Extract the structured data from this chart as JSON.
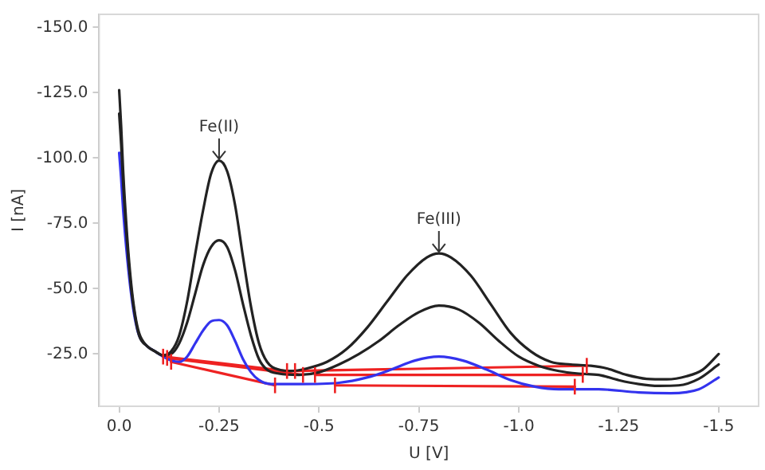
{
  "chart_data": {
    "type": "line",
    "xlabel": "U [V]",
    "ylabel": "I [nA]",
    "xlim": [
      0.05,
      -1.6
    ],
    "ylim": [
      -5,
      -155
    ],
    "xticks": [
      {
        "value": 0,
        "label": "0.0"
      },
      {
        "value": -0.25,
        "label": "-0.25"
      },
      {
        "value": -0.5,
        "label": "-0.5"
      },
      {
        "value": -0.75,
        "label": "-0.75"
      },
      {
        "value": -1,
        "label": "-1.0"
      },
      {
        "value": -1.25,
        "label": "-1.25"
      },
      {
        "value": -1.5,
        "label": "-1.5"
      }
    ],
    "yticks": [
      {
        "value": -150,
        "label": "-150.0"
      },
      {
        "value": -125,
        "label": "-125.0"
      },
      {
        "value": -100,
        "label": "-100.0"
      },
      {
        "value": -75,
        "label": "-75.0"
      },
      {
        "value": -50,
        "label": "-50.0"
      },
      {
        "value": -25,
        "label": "-25.0"
      }
    ],
    "grid": false,
    "legend": false,
    "marker": "none",
    "line_style": "solid",
    "series": [
      {
        "color": "#222222",
        "x": [
          0,
          -0.005,
          -0.01,
          -0.02,
          -0.03,
          -0.04,
          -0.05,
          -0.07,
          -0.09,
          -0.11,
          -0.13,
          -0.15,
          -0.17,
          -0.19,
          -0.21,
          -0.23,
          -0.25,
          -0.27,
          -0.29,
          -0.31,
          -0.33,
          -0.35,
          -0.37,
          -0.4,
          -0.43,
          -0.47,
          -0.52,
          -0.57,
          -0.62,
          -0.67,
          -0.72,
          -0.77,
          -0.8,
          -0.83,
          -0.88,
          -0.93,
          -0.98,
          -1.03,
          -1.08,
          -1.13,
          -1.18,
          -1.22,
          -1.27,
          -1.32,
          -1.37,
          -1.42,
          -1.46,
          -1.5
        ],
        "values": [
          -126,
          -112,
          -95,
          -70,
          -52,
          -40,
          -33,
          -28,
          -26,
          -24.5,
          -26,
          -32,
          -45,
          -63,
          -80,
          -94,
          -99,
          -95,
          -82,
          -62,
          -43,
          -29,
          -22,
          -19,
          -18.5,
          -19.5,
          -22,
          -27,
          -35,
          -45,
          -55,
          -62,
          -63.5,
          -62,
          -55,
          -44,
          -33,
          -26,
          -22,
          -21,
          -20.5,
          -19.5,
          -17,
          -15.5,
          -15.3,
          -16.5,
          -19,
          -25
        ]
      },
      {
        "color": "#222222",
        "x": [
          0,
          -0.005,
          -0.01,
          -0.02,
          -0.03,
          -0.04,
          -0.05,
          -0.07,
          -0.09,
          -0.11,
          -0.13,
          -0.15,
          -0.17,
          -0.19,
          -0.21,
          -0.23,
          -0.25,
          -0.27,
          -0.29,
          -0.31,
          -0.33,
          -0.35,
          -0.37,
          -0.4,
          -0.45,
          -0.5,
          -0.55,
          -0.6,
          -0.65,
          -0.7,
          -0.75,
          -0.8,
          -0.85,
          -0.9,
          -0.95,
          -1,
          -1.05,
          -1.1,
          -1.15,
          -1.2,
          -1.25,
          -1.3,
          -1.35,
          -1.4,
          -1.45,
          -1.5
        ],
        "values": [
          -117,
          -105,
          -90,
          -67,
          -50,
          -39,
          -32,
          -28,
          -26,
          -24.5,
          -25,
          -29,
          -37,
          -48,
          -59,
          -66,
          -68.5,
          -66,
          -57,
          -44,
          -32,
          -23,
          -19,
          -17.5,
          -17,
          -18,
          -21,
          -25,
          -30,
          -36,
          -41,
          -43.5,
          -42,
          -37,
          -30,
          -24,
          -20.5,
          -18.5,
          -17.5,
          -17,
          -15,
          -13.5,
          -12.8,
          -13,
          -15.5,
          -21
        ]
      },
      {
        "color": "#3333ee",
        "x": [
          0,
          -0.005,
          -0.01,
          -0.02,
          -0.03,
          -0.04,
          -0.05,
          -0.07,
          -0.09,
          -0.11,
          -0.13,
          -0.15,
          -0.17,
          -0.19,
          -0.21,
          -0.23,
          -0.25,
          -0.27,
          -0.29,
          -0.31,
          -0.33,
          -0.35,
          -0.38,
          -0.45,
          -0.55,
          -0.62,
          -0.68,
          -0.74,
          -0.8,
          -0.86,
          -0.92,
          -0.98,
          -1.04,
          -1.1,
          -1.2,
          -1.3,
          -1.38,
          -1.45,
          -1.5
        ],
        "values": [
          -102,
          -92,
          -80,
          -62,
          -48,
          -38,
          -32,
          -28,
          -26,
          -24,
          -22.5,
          -22,
          -24,
          -29,
          -34,
          -37.5,
          -38,
          -36,
          -30,
          -23,
          -18,
          -15,
          -13.5,
          -13.5,
          -14,
          -16,
          -19,
          -22.5,
          -24,
          -22.5,
          -19,
          -15,
          -12.5,
          -11.5,
          -11.5,
          -10.3,
          -10,
          -11.5,
          -16
        ]
      },
      {
        "color": "#ee2222",
        "x": [
          -0.11,
          -0.42
        ],
        "values": [
          -24,
          -18.5
        ],
        "errors": [
          3,
          3
        ]
      },
      {
        "color": "#ee2222",
        "x": [
          -0.44,
          -1.17
        ],
        "values": [
          -18.5,
          -20.5
        ],
        "errors": [
          3,
          3
        ]
      },
      {
        "color": "#ee2222",
        "x": [
          -0.12,
          -0.46
        ],
        "values": [
          -23.5,
          -17
        ],
        "errors": [
          3,
          3
        ]
      },
      {
        "color": "#ee2222",
        "x": [
          -0.49,
          -1.16
        ],
        "values": [
          -17,
          -17
        ],
        "errors": [
          3,
          3
        ]
      },
      {
        "color": "#ee2222",
        "x": [
          -0.13,
          -0.39
        ],
        "values": [
          -22,
          -13
        ],
        "errors": [
          3,
          3
        ]
      },
      {
        "color": "#ee2222",
        "x": [
          -0.54,
          -1.14
        ],
        "values": [
          -13,
          -12.5
        ],
        "errors": [
          3,
          3
        ]
      }
    ],
    "annotations": [
      {
        "text": "Fe(II)",
        "x": -0.25,
        "y": -99
      },
      {
        "text": "Fe(III)",
        "x": -0.8,
        "y": -63.5
      }
    ]
  }
}
